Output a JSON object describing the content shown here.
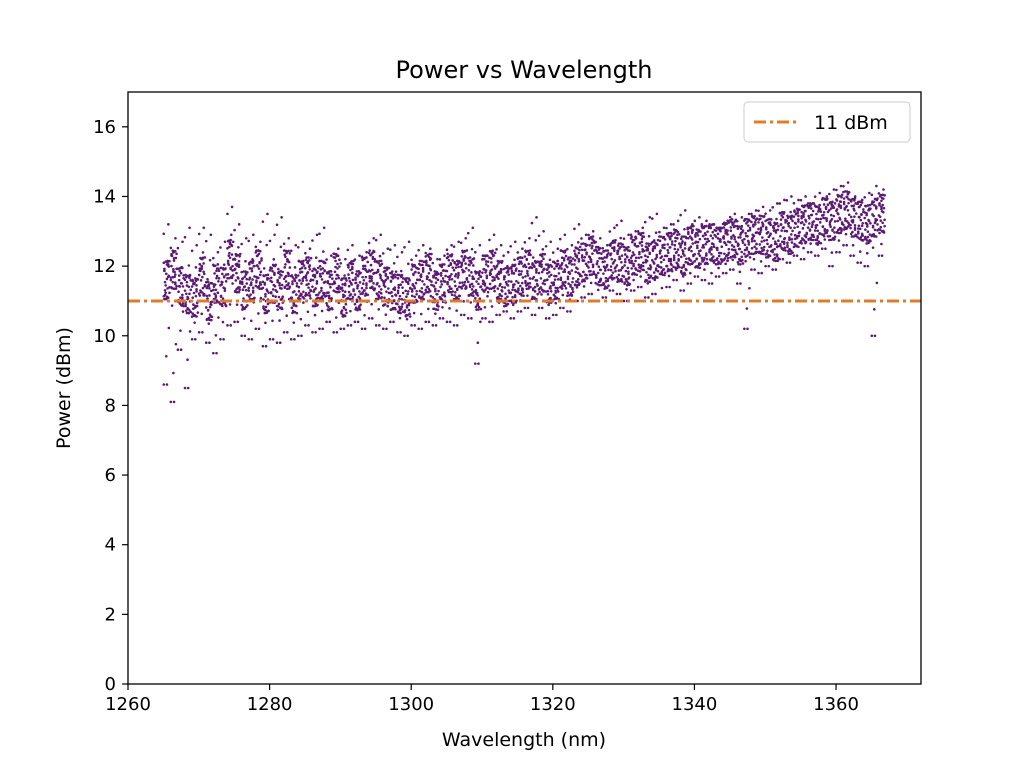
{
  "chart_data": {
    "type": "scatter",
    "title": "Power vs Wavelength",
    "xlabel": "Wavelength (nm)",
    "ylabel": "Power (dBm)",
    "xlim": [
      1260,
      1372
    ],
    "ylim": [
      0,
      17
    ],
    "xticks": [
      1260,
      1280,
      1300,
      1320,
      1340,
      1360
    ],
    "yticks": [
      0,
      2,
      4,
      6,
      8,
      10,
      12,
      14,
      16
    ],
    "grid": false,
    "legend_position": "top-right",
    "reference_line": {
      "y": 11,
      "label": "11 dBm",
      "style": "dash-dot",
      "color": "#e07b2a"
    },
    "series": [
      {
        "color": "#5b1a73",
        "marker": "dot",
        "x": [
          1265.5,
          1266.5,
          1267.5,
          1268.5,
          1269.5,
          1270.5,
          1271.5,
          1272.5,
          1273.5,
          1274.5,
          1275.5,
          1276.5,
          1277.5,
          1278.5,
          1279.5,
          1280.5,
          1281.5,
          1282.5,
          1283.5,
          1284.5,
          1285.5,
          1286.5,
          1287.5,
          1288.5,
          1289.5,
          1290.5,
          1291.5,
          1292.5,
          1293.5,
          1294.5,
          1295.5,
          1296.5,
          1297.5,
          1298.5,
          1299.5,
          1300.5,
          1301.5,
          1302.5,
          1303.5,
          1304.5,
          1305.5,
          1306.5,
          1307.5,
          1308.5,
          1309.5,
          1310.5,
          1311.5,
          1312.5,
          1313.5,
          1314.5,
          1315.5,
          1316.5,
          1317.5,
          1318.5,
          1319.5,
          1320.5,
          1321.5,
          1322.5,
          1323.5,
          1324.5,
          1325.5,
          1326.5,
          1327.5,
          1328.5,
          1329.5,
          1330.5,
          1331.5,
          1332.5,
          1333.5,
          1334.5,
          1335.5,
          1336.5,
          1337.5,
          1338.5,
          1339.5,
          1340.5,
          1341.5,
          1342.5,
          1343.5,
          1344.5,
          1345.5,
          1346.5,
          1347.5,
          1348.5,
          1349.5,
          1350.5,
          1351.5,
          1352.5,
          1353.5,
          1354.5,
          1355.5,
          1356.5,
          1357.5,
          1358.5,
          1359.5,
          1360.5,
          1361.5,
          1362.5,
          1363.5,
          1364.5,
          1365.5,
          1366.5
        ],
        "y": [
          11.6,
          11.9,
          11.4,
          11.2,
          11.1,
          11.7,
          11.0,
          11.5,
          11.4,
          12.2,
          11.8,
          11.3,
          11.6,
          11.9,
          11.2,
          11.5,
          11.3,
          11.9,
          11.2,
          11.6,
          11.7,
          11.4,
          11.6,
          11.3,
          11.8,
          11.1,
          11.6,
          11.3,
          11.7,
          11.9,
          11.6,
          11.4,
          11.3,
          11.2,
          11.1,
          11.5,
          11.6,
          11.8,
          11.3,
          11.5,
          11.8,
          11.6,
          11.9,
          11.7,
          11.3,
          11.8,
          11.9,
          11.6,
          11.4,
          11.5,
          11.7,
          11.9,
          11.6,
          11.8,
          11.5,
          11.6,
          11.9,
          11.7,
          12.0,
          12.1,
          12.3,
          12.0,
          11.9,
          12.2,
          12.1,
          12.0,
          12.3,
          12.4,
          12.1,
          12.2,
          12.3,
          12.4,
          12.5,
          12.3,
          12.6,
          12.5,
          12.6,
          12.7,
          12.6,
          12.7,
          12.8,
          12.6,
          12.8,
          12.9,
          12.9,
          12.8,
          12.7,
          13.0,
          12.9,
          13.1,
          13.2,
          13.3,
          13.2,
          13.4,
          13.3,
          13.5,
          13.6,
          13.4,
          13.3,
          13.2,
          13.4,
          13.5
        ],
        "ymin": [
          8.6,
          8.1,
          9.6,
          8.5,
          9.9,
          10.1,
          9.8,
          9.5,
          9.9,
          10.3,
          10.4,
          10.0,
          9.9,
          10.2,
          9.7,
          9.9,
          9.8,
          10.1,
          9.9,
          10.0,
          10.3,
          10.1,
          10.2,
          10.4,
          10.1,
          10.2,
          10.3,
          10.4,
          10.2,
          10.5,
          10.3,
          10.2,
          10.4,
          10.1,
          10.0,
          10.3,
          10.2,
          10.4,
          10.3,
          10.5,
          10.4,
          10.3,
          10.6,
          10.5,
          9.2,
          10.5,
          10.4,
          10.6,
          10.7,
          10.5,
          10.7,
          10.8,
          10.6,
          10.8,
          10.5,
          10.6,
          10.8,
          10.7,
          11.0,
          11.1,
          11.2,
          11.0,
          11.1,
          11.3,
          11.2,
          11.0,
          11.3,
          11.4,
          11.1,
          11.2,
          11.0,
          11.4,
          11.6,
          11.3,
          11.5,
          11.7,
          11.6,
          11.5,
          11.7,
          11.8,
          11.9,
          11.5,
          10.2,
          11.9,
          11.8,
          12.0,
          11.9,
          12.2,
          12.1,
          12.3,
          12.2,
          12.4,
          12.3,
          12.5,
          12.0,
          12.4,
          12.6,
          12.3,
          12.1,
          12.0,
          10.0,
          12.3
        ],
        "ymax": [
          13.2,
          12.8,
          12.7,
          13.1,
          12.6,
          13.1,
          12.9,
          12.4,
          12.7,
          13.7,
          13.2,
          12.8,
          12.9,
          12.7,
          13.5,
          12.9,
          13.4,
          12.8,
          12.6,
          12.7,
          12.5,
          12.9,
          13.1,
          12.3,
          12.5,
          12.2,
          12.6,
          12.3,
          12.4,
          12.8,
          12.9,
          12.5,
          12.6,
          12.4,
          12.7,
          12.3,
          12.6,
          12.5,
          12.2,
          12.3,
          12.6,
          12.7,
          12.8,
          13.1,
          12.6,
          12.3,
          12.9,
          12.6,
          12.4,
          12.7,
          12.5,
          12.8,
          13.4,
          13.0,
          12.7,
          12.5,
          12.9,
          12.6,
          13.2,
          12.9,
          13.0,
          12.8,
          12.6,
          13.1,
          13.3,
          12.9,
          13.0,
          13.1,
          13.4,
          13.5,
          13.1,
          13.2,
          13.3,
          13.6,
          13.2,
          13.4,
          13.3,
          13.2,
          13.1,
          13.3,
          13.5,
          13.4,
          13.5,
          13.6,
          13.7,
          13.6,
          13.8,
          13.9,
          14.0,
          13.9,
          14.0,
          13.8,
          14.1,
          14.0,
          14.2,
          14.3,
          14.4,
          14.0,
          13.9,
          14.1,
          14.3,
          14.2
        ]
      }
    ]
  }
}
